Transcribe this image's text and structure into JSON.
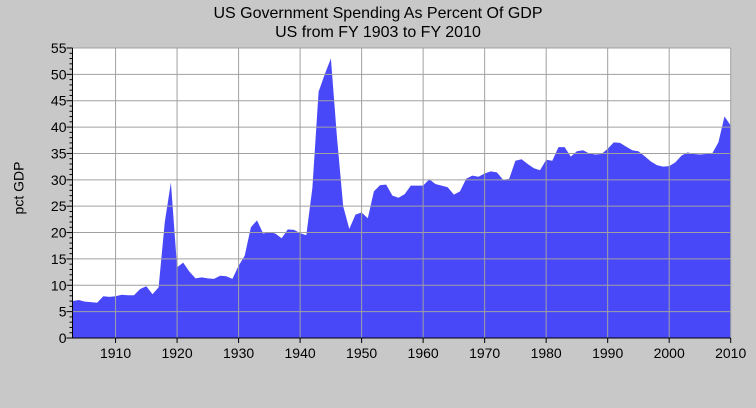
{
  "chart_data": {
    "type": "area",
    "title": "US Government Spending As Percent Of GDP",
    "subtitle": "US from FY 1903 to FY 2010",
    "xlabel": "",
    "ylabel": "pct GDP",
    "xlim": [
      1903,
      2010
    ],
    "ylim": [
      0,
      55
    ],
    "grid": true,
    "fill_color": "#4848f8",
    "x_ticks": [
      1910,
      1920,
      1930,
      1940,
      1950,
      1960,
      1970,
      1980,
      1990,
      2000,
      2010
    ],
    "y_ticks": [
      0,
      5,
      10,
      15,
      20,
      25,
      30,
      35,
      40,
      45,
      50,
      55
    ],
    "x": [
      1903,
      1904,
      1905,
      1906,
      1907,
      1908,
      1909,
      1910,
      1911,
      1912,
      1913,
      1914,
      1915,
      1916,
      1917,
      1918,
      1919,
      1920,
      1921,
      1922,
      1923,
      1924,
      1925,
      1926,
      1927,
      1928,
      1929,
      1930,
      1931,
      1932,
      1933,
      1934,
      1935,
      1936,
      1937,
      1938,
      1939,
      1940,
      1941,
      1942,
      1943,
      1944,
      1945,
      1946,
      1947,
      1948,
      1949,
      1950,
      1951,
      1952,
      1953,
      1954,
      1955,
      1956,
      1957,
      1958,
      1959,
      1960,
      1961,
      1962,
      1963,
      1964,
      1965,
      1966,
      1967,
      1968,
      1969,
      1970,
      1971,
      1972,
      1973,
      1974,
      1975,
      1976,
      1977,
      1978,
      1979,
      1980,
      1981,
      1982,
      1983,
      1984,
      1985,
      1986,
      1987,
      1988,
      1989,
      1990,
      1991,
      1992,
      1993,
      1994,
      1995,
      1996,
      1997,
      1998,
      1999,
      2000,
      2001,
      2002,
      2003,
      2004,
      2005,
      2006,
      2007,
      2008,
      2009,
      2010
    ],
    "values": [
      7,
      7.2,
      6.9,
      6.8,
      6.7,
      7.9,
      7.8,
      7.9,
      8.2,
      8.1,
      8.1,
      9.3,
      9.8,
      8.3,
      9.6,
      22,
      29.5,
      13.4,
      14.3,
      12.6,
      11.3,
      11.5,
      11.3,
      11.2,
      11.8,
      11.7,
      11.2,
      13.7,
      15.6,
      21,
      22.3,
      19.8,
      20.1,
      19.8,
      18.9,
      20.6,
      20.5,
      19.9,
      19.5,
      28.5,
      46.7,
      50,
      53,
      38,
      25,
      20.7,
      23.4,
      23.8,
      22.7,
      27.8,
      29,
      29.1,
      27,
      26.6,
      27.3,
      28.9,
      28.9,
      28.9,
      30.1,
      29.2,
      28.9,
      28.6,
      27.2,
      27.8,
      30.2,
      30.8,
      30.6,
      31.2,
      31.6,
      31.4,
      30,
      30.2,
      33.6,
      33.9,
      33,
      32.2,
      31.8,
      33.8,
      33.6,
      36.2,
      36.2,
      34.4,
      35.4,
      35.6,
      35,
      34.8,
      34.9,
      35.9,
      37.1,
      37,
      36.3,
      35.6,
      35.4,
      34.5,
      33.5,
      32.8,
      32.5,
      32.6,
      33.3,
      34.6,
      35.2,
      34.9,
      34.8,
      34.9,
      35,
      37.1,
      42,
      40.3
    ]
  }
}
